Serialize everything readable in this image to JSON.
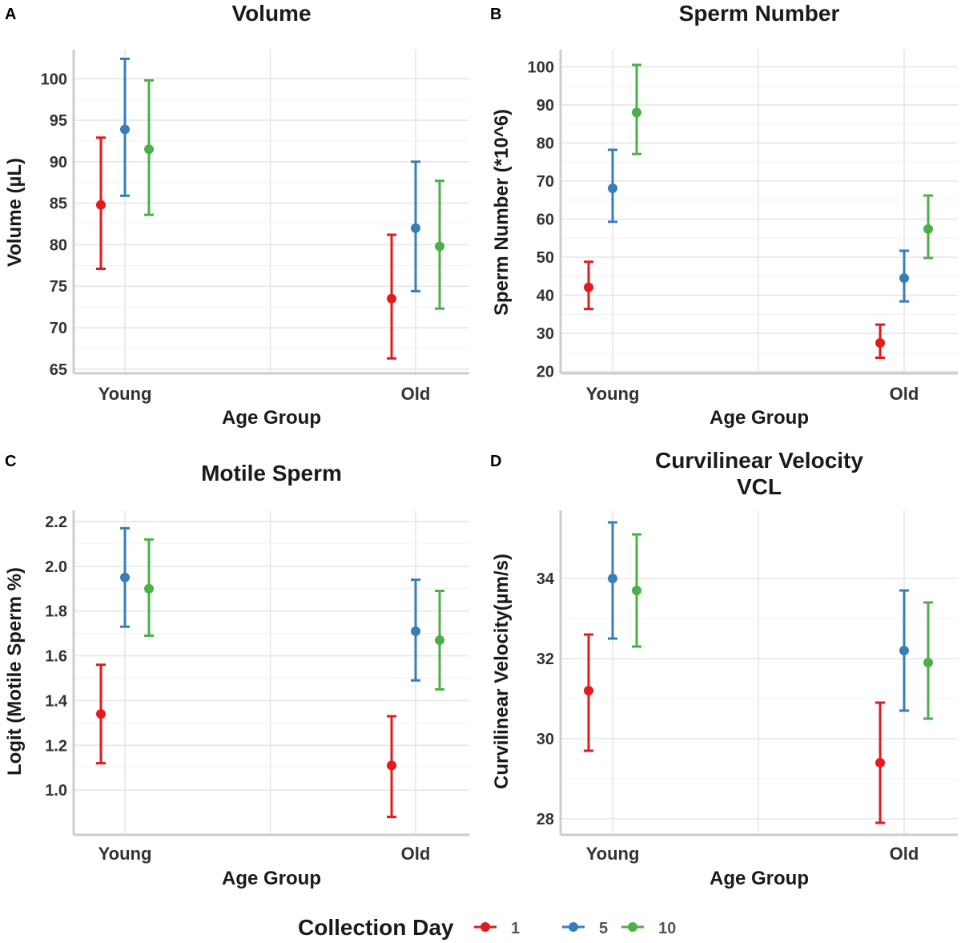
{
  "legend": {
    "title": "Collection Day",
    "items": [
      {
        "label": "1",
        "color": "#E41A1C"
      },
      {
        "label": "5",
        "color": "#377EB8"
      },
      {
        "label": "10",
        "color": "#4DAF4A"
      }
    ]
  },
  "chart_data": [
    {
      "panel": "A",
      "type": "scatter",
      "title": "Volume",
      "xlabel": "Age Group",
      "ylabel": "Volume (µL)",
      "categories": [
        "Young",
        "Old"
      ],
      "ylim": [
        64.5,
        103.5
      ],
      "yticks": [
        65,
        70,
        75,
        80,
        85,
        90,
        95,
        100
      ],
      "series": [
        {
          "name": "1",
          "means": [
            84.8,
            73.5
          ],
          "lower": [
            77.1,
            66.3
          ],
          "upper": [
            92.9,
            81.2
          ]
        },
        {
          "name": "5",
          "means": [
            93.9,
            82.0
          ],
          "lower": [
            85.9,
            74.4
          ],
          "upper": [
            102.4,
            90.0
          ]
        },
        {
          "name": "10",
          "means": [
            91.5,
            79.8
          ],
          "lower": [
            83.6,
            72.3
          ],
          "upper": [
            99.8,
            87.7
          ]
        }
      ]
    },
    {
      "panel": "B",
      "type": "scatter",
      "title": "Sperm Number",
      "xlabel": "Age Group",
      "ylabel": "Sperm Number (*10^6)",
      "categories": [
        "Young",
        "Old"
      ],
      "ylim": [
        19.5,
        104.5
      ],
      "yticks": [
        20,
        30,
        40,
        50,
        60,
        70,
        80,
        90,
        100
      ],
      "series": [
        {
          "name": "1",
          "means": [
            42.1,
            27.5
          ],
          "lower": [
            36.4,
            23.6
          ],
          "upper": [
            48.8,
            32.3
          ]
        },
        {
          "name": "5",
          "means": [
            68.1,
            44.5
          ],
          "lower": [
            59.3,
            38.4
          ],
          "upper": [
            78.2,
            51.7
          ]
        },
        {
          "name": "10",
          "means": [
            88.0,
            57.4
          ],
          "lower": [
            77.1,
            49.8
          ],
          "upper": [
            100.5,
            66.2
          ]
        }
      ]
    },
    {
      "panel": "C",
      "type": "scatter",
      "title": "Motile Sperm",
      "xlabel": "Age Group",
      "ylabel": "Logit (Motile Sperm %)",
      "categories": [
        "Young",
        "Old"
      ],
      "ylim": [
        0.8,
        2.25
      ],
      "yticks": [
        "1.0",
        "1.2",
        "1.4",
        "1.6",
        "1.8",
        "2.0",
        "2.2"
      ],
      "series": [
        {
          "name": "1",
          "means": [
            1.34,
            1.11
          ],
          "lower": [
            1.12,
            0.88
          ],
          "upper": [
            1.56,
            1.33
          ]
        },
        {
          "name": "5",
          "means": [
            1.95,
            1.71
          ],
          "lower": [
            1.73,
            1.49
          ],
          "upper": [
            2.17,
            1.94
          ]
        },
        {
          "name": "10",
          "means": [
            1.9,
            1.67
          ],
          "lower": [
            1.69,
            1.45
          ],
          "upper": [
            2.12,
            1.89
          ]
        }
      ]
    },
    {
      "panel": "D",
      "type": "scatter",
      "title": "Curvilinear Velocity\nVCL",
      "xlabel": "Age Group",
      "ylabel": "Curvilinear Velocity(µm/s)",
      "categories": [
        "Young",
        "Old"
      ],
      "ylim": [
        27.6,
        35.7
      ],
      "yticks": [
        28,
        30,
        32,
        34
      ],
      "series": [
        {
          "name": "1",
          "means": [
            31.2,
            29.4
          ],
          "lower": [
            29.7,
            27.9
          ],
          "upper": [
            32.6,
            30.9
          ]
        },
        {
          "name": "5",
          "means": [
            34.0,
            32.2
          ],
          "lower": [
            32.5,
            30.7
          ],
          "upper": [
            35.4,
            33.7
          ]
        },
        {
          "name": "10",
          "means": [
            33.7,
            31.9
          ],
          "lower": [
            32.3,
            30.5
          ],
          "upper": [
            35.1,
            33.4
          ]
        }
      ]
    }
  ]
}
